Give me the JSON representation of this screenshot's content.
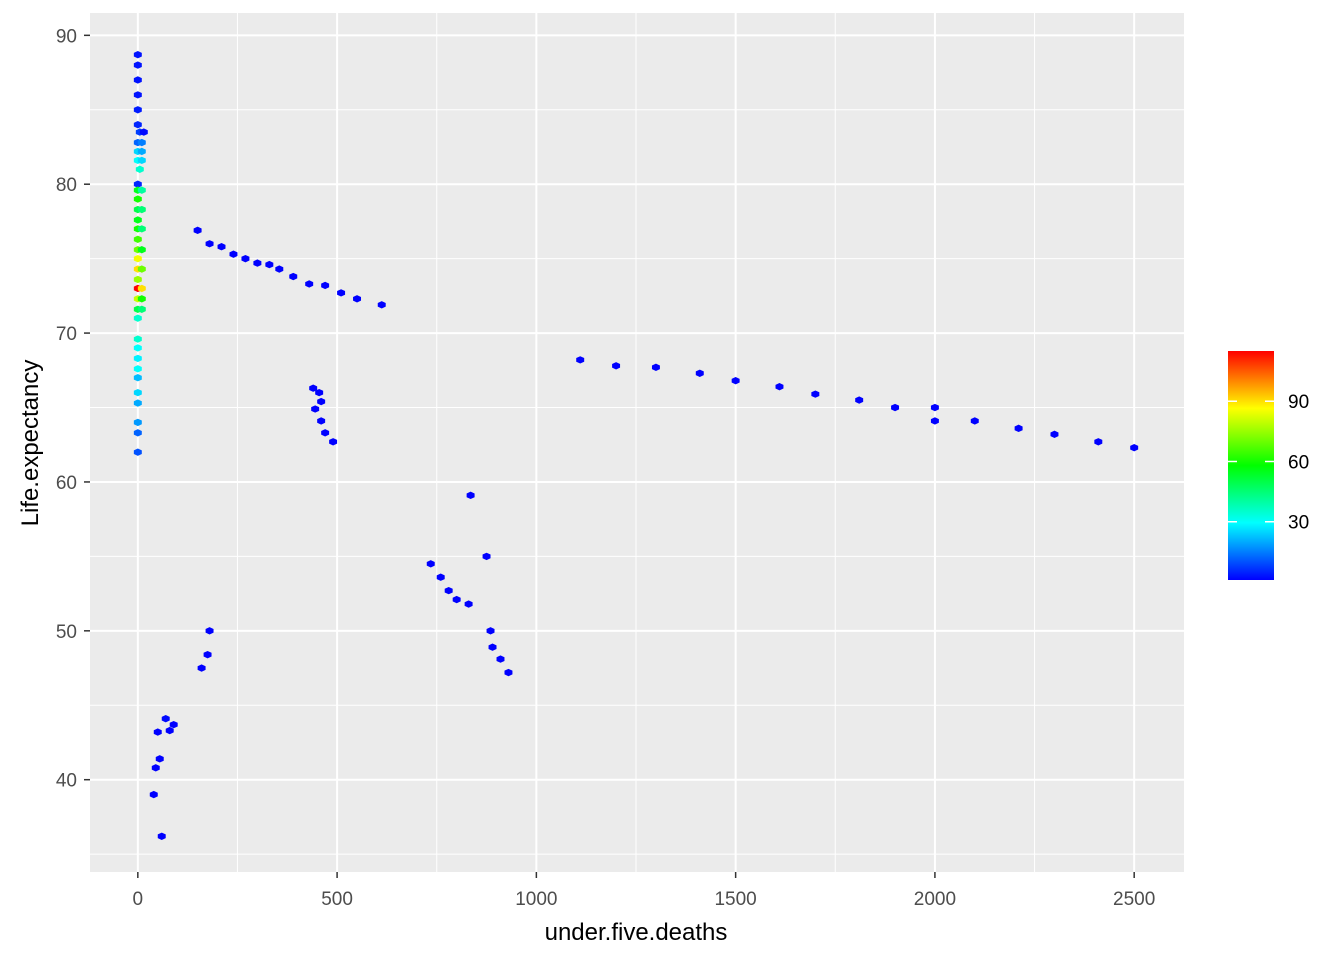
{
  "chart_data": {
    "type": "heatmap",
    "subtype": "hexbin",
    "title": "",
    "xlabel": "under.five.deaths",
    "ylabel": "Life.expectancy",
    "xlim": [
      -120,
      2625
    ],
    "ylim": [
      33.8,
      91.5
    ],
    "x_ticks": [
      0,
      500,
      1000,
      1500,
      2000,
      2500
    ],
    "x_tick_labels": [
      "0",
      "500",
      "1000",
      "1500",
      "2000",
      "2500"
    ],
    "y_ticks": [
      40,
      50,
      60,
      70,
      80,
      90
    ],
    "y_tick_labels": [
      "40",
      "50",
      "60",
      "70",
      "80",
      "90"
    ],
    "grid": true,
    "legend": {
      "position": "right",
      "type": "colorbar",
      "count_range": [
        1,
        115
      ],
      "ticks": [
        30,
        60,
        90
      ],
      "tick_labels": [
        "30",
        "60",
        "90"
      ],
      "colors": [
        "#0000FF",
        "#0080FF",
        "#00FFFF",
        "#00FF80",
        "#00FF00",
        "#80FF00",
        "#FFFF00",
        "#FF8000",
        "#FF0000"
      ]
    },
    "cells": [
      {
        "x": 0,
        "y": 88.7,
        "count": 3
      },
      {
        "x": 0,
        "y": 88.0,
        "count": 3
      },
      {
        "x": 0,
        "y": 87.0,
        "count": 3
      },
      {
        "x": 0,
        "y": 86.0,
        "count": 3
      },
      {
        "x": 0,
        "y": 85.0,
        "count": 4
      },
      {
        "x": 0,
        "y": 84.0,
        "count": 5
      },
      {
        "x": 5,
        "y": 83.5,
        "count": 8
      },
      {
        "x": 15,
        "y": 83.5,
        "count": 2
      },
      {
        "x": 0,
        "y": 82.8,
        "count": 12
      },
      {
        "x": 10,
        "y": 82.8,
        "count": 15
      },
      {
        "x": 0,
        "y": 82.2,
        "count": 25
      },
      {
        "x": 10,
        "y": 82.2,
        "count": 20
      },
      {
        "x": 0,
        "y": 81.6,
        "count": 30
      },
      {
        "x": 10,
        "y": 81.6,
        "count": 25
      },
      {
        "x": 5,
        "y": 81.0,
        "count": 35
      },
      {
        "x": 0,
        "y": 80.0,
        "count": 5
      },
      {
        "x": 0,
        "y": 79.6,
        "count": 55
      },
      {
        "x": 10,
        "y": 79.6,
        "count": 40
      },
      {
        "x": 0,
        "y": 79.0,
        "count": 60
      },
      {
        "x": 0,
        "y": 78.3,
        "count": 50
      },
      {
        "x": 10,
        "y": 78.3,
        "count": 45
      },
      {
        "x": 0,
        "y": 77.6,
        "count": 55
      },
      {
        "x": 0,
        "y": 77.0,
        "count": 60
      },
      {
        "x": 10,
        "y": 77.0,
        "count": 45
      },
      {
        "x": 0,
        "y": 76.3,
        "count": 65
      },
      {
        "x": 0,
        "y": 75.6,
        "count": 70
      },
      {
        "x": 10,
        "y": 75.6,
        "count": 55
      },
      {
        "x": 0,
        "y": 75.0,
        "count": 85
      },
      {
        "x": 0,
        "y": 74.3,
        "count": 90
      },
      {
        "x": 10,
        "y": 74.3,
        "count": 70
      },
      {
        "x": 0,
        "y": 73.6,
        "count": 75
      },
      {
        "x": 0,
        "y": 73.0,
        "count": 115
      },
      {
        "x": 10,
        "y": 73.0,
        "count": 90
      },
      {
        "x": 0,
        "y": 72.3,
        "count": 80
      },
      {
        "x": 10,
        "y": 72.3,
        "count": 60
      },
      {
        "x": 0,
        "y": 71.6,
        "count": 50
      },
      {
        "x": 10,
        "y": 71.6,
        "count": 45
      },
      {
        "x": 0,
        "y": 71.0,
        "count": 35
      },
      {
        "x": 0,
        "y": 69.6,
        "count": 35
      },
      {
        "x": 0,
        "y": 69.0,
        "count": 30
      },
      {
        "x": 0,
        "y": 68.3,
        "count": 28
      },
      {
        "x": 0,
        "y": 67.6,
        "count": 30
      },
      {
        "x": 0,
        "y": 67.0,
        "count": 22
      },
      {
        "x": 0,
        "y": 66.0,
        "count": 25
      },
      {
        "x": 0,
        "y": 65.3,
        "count": 20
      },
      {
        "x": 0,
        "y": 64.0,
        "count": 18
      },
      {
        "x": 0,
        "y": 63.3,
        "count": 12
      },
      {
        "x": 0,
        "y": 62.0,
        "count": 10
      },
      {
        "x": 150,
        "y": 76.9,
        "count": 1
      },
      {
        "x": 180,
        "y": 76.0,
        "count": 1
      },
      {
        "x": 210,
        "y": 75.8,
        "count": 1
      },
      {
        "x": 240,
        "y": 75.3,
        "count": 1
      },
      {
        "x": 270,
        "y": 75.0,
        "count": 1
      },
      {
        "x": 300,
        "y": 74.7,
        "count": 1
      },
      {
        "x": 330,
        "y": 74.6,
        "count": 1
      },
      {
        "x": 355,
        "y": 74.3,
        "count": 1
      },
      {
        "x": 390,
        "y": 73.8,
        "count": 1
      },
      {
        "x": 430,
        "y": 73.3,
        "count": 1
      },
      {
        "x": 470,
        "y": 73.2,
        "count": 1
      },
      {
        "x": 510,
        "y": 72.7,
        "count": 1
      },
      {
        "x": 550,
        "y": 72.3,
        "count": 1
      },
      {
        "x": 612,
        "y": 71.9,
        "count": 1
      },
      {
        "x": 1110,
        "y": 68.2,
        "count": 1
      },
      {
        "x": 1200,
        "y": 67.8,
        "count": 1
      },
      {
        "x": 1300,
        "y": 67.7,
        "count": 1
      },
      {
        "x": 1410,
        "y": 67.3,
        "count": 1
      },
      {
        "x": 1500,
        "y": 66.8,
        "count": 1
      },
      {
        "x": 1610,
        "y": 66.4,
        "count": 1
      },
      {
        "x": 1700,
        "y": 65.9,
        "count": 1
      },
      {
        "x": 1810,
        "y": 65.5,
        "count": 1
      },
      {
        "x": 1900,
        "y": 65.0,
        "count": 1
      },
      {
        "x": 2000,
        "y": 65.0,
        "count": 1
      },
      {
        "x": 2000,
        "y": 64.1,
        "count": 1
      },
      {
        "x": 2100,
        "y": 64.1,
        "count": 1
      },
      {
        "x": 2210,
        "y": 63.6,
        "count": 1
      },
      {
        "x": 2300,
        "y": 63.2,
        "count": 1
      },
      {
        "x": 2410,
        "y": 62.7,
        "count": 1
      },
      {
        "x": 2500,
        "y": 62.3,
        "count": 1
      },
      {
        "x": 835,
        "y": 59.1,
        "count": 1
      },
      {
        "x": 735,
        "y": 54.5,
        "count": 1
      },
      {
        "x": 875,
        "y": 55.0,
        "count": 1
      },
      {
        "x": 760,
        "y": 53.6,
        "count": 1
      },
      {
        "x": 780,
        "y": 52.7,
        "count": 1
      },
      {
        "x": 800,
        "y": 52.1,
        "count": 1
      },
      {
        "x": 830,
        "y": 51.8,
        "count": 1
      },
      {
        "x": 885,
        "y": 50.0,
        "count": 1
      },
      {
        "x": 890,
        "y": 48.9,
        "count": 1
      },
      {
        "x": 910,
        "y": 48.1,
        "count": 1
      },
      {
        "x": 930,
        "y": 47.2,
        "count": 1
      },
      {
        "x": 440,
        "y": 66.3,
        "count": 1
      },
      {
        "x": 455,
        "y": 66.0,
        "count": 1
      },
      {
        "x": 460,
        "y": 65.4,
        "count": 1
      },
      {
        "x": 445,
        "y": 64.9,
        "count": 1
      },
      {
        "x": 460,
        "y": 64.1,
        "count": 1
      },
      {
        "x": 470,
        "y": 63.3,
        "count": 1
      },
      {
        "x": 490,
        "y": 62.7,
        "count": 1
      },
      {
        "x": 60,
        "y": 36.2,
        "count": 1
      },
      {
        "x": 40,
        "y": 39.0,
        "count": 1
      },
      {
        "x": 45,
        "y": 40.8,
        "count": 1
      },
      {
        "x": 55,
        "y": 41.4,
        "count": 1
      },
      {
        "x": 50,
        "y": 43.2,
        "count": 1
      },
      {
        "x": 80,
        "y": 43.3,
        "count": 1
      },
      {
        "x": 70,
        "y": 44.1,
        "count": 2
      },
      {
        "x": 90,
        "y": 43.7,
        "count": 1
      },
      {
        "x": 160,
        "y": 47.5,
        "count": 1
      },
      {
        "x": 175,
        "y": 48.4,
        "count": 1
      },
      {
        "x": 180,
        "y": 50.0,
        "count": 1
      }
    ]
  }
}
